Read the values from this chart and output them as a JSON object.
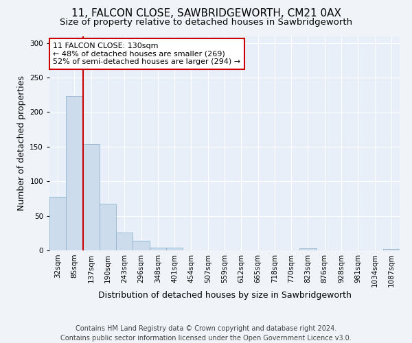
{
  "title_line1": "11, FALCON CLOSE, SAWBRIDGEWORTH, CM21 0AX",
  "title_line2": "Size of property relative to detached houses in Sawbridgeworth",
  "xlabel": "Distribution of detached houses by size in Sawbridgeworth",
  "ylabel": "Number of detached properties",
  "bar_labels": [
    "32sqm",
    "85sqm",
    "137sqm",
    "190sqm",
    "243sqm",
    "296sqm",
    "348sqm",
    "401sqm",
    "454sqm",
    "507sqm",
    "559sqm",
    "612sqm",
    "665sqm",
    "718sqm",
    "770sqm",
    "823sqm",
    "876sqm",
    "928sqm",
    "981sqm",
    "1034sqm",
    "1087sqm"
  ],
  "bar_values": [
    77,
    223,
    154,
    67,
    26,
    14,
    4,
    4,
    0,
    0,
    0,
    0,
    0,
    0,
    0,
    3,
    0,
    0,
    0,
    0,
    2
  ],
  "bar_color": "#ccdcec",
  "bar_edge_color": "#90b4cc",
  "vline_color": "#cc0000",
  "annotation_text": "11 FALCON CLOSE: 130sqm\n← 48% of detached houses are smaller (269)\n52% of semi-detached houses are larger (294) →",
  "annotation_box_color": "#ffffff",
  "annotation_box_edge": "#cc0000",
  "ylim": [
    0,
    310
  ],
  "yticks": [
    0,
    50,
    100,
    150,
    200,
    250,
    300
  ],
  "footer_line1": "Contains HM Land Registry data © Crown copyright and database right 2024.",
  "footer_line2": "Contains public sector information licensed under the Open Government Licence v3.0.",
  "background_color": "#f0f4f8",
  "plot_bg_color": "#e8eff8",
  "grid_color": "#ffffff",
  "title_fontsize": 11,
  "subtitle_fontsize": 9.5,
  "axis_label_fontsize": 9,
  "tick_label_fontsize": 7.5,
  "annotation_fontsize": 8,
  "footer_fontsize": 7
}
